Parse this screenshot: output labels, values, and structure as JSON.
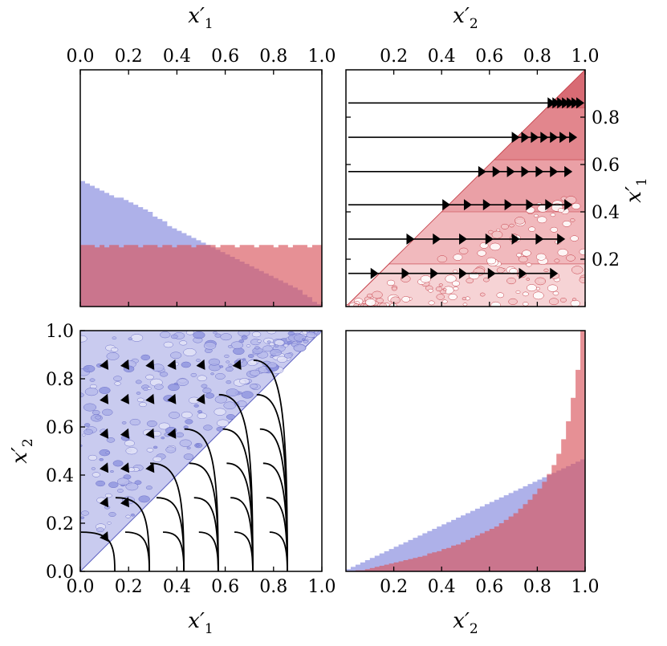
{
  "colors": {
    "blue_fill": "#8c90e0",
    "red_fill": "#d9545c",
    "red_stroke": "#c43c46",
    "blue_stroke": "#5a5ec0",
    "overlap": "#b26a86",
    "arrow": "#000000"
  },
  "axis_text": {
    "x1": {
      "main": "x′",
      "sub": "1"
    },
    "x2": {
      "main": "x′",
      "sub": "2"
    }
  },
  "chart_data": [
    {
      "panel": "top-left",
      "type": "histogram",
      "xlabel": "x′1",
      "xlabel_position": "top",
      "xlim": [
        0,
        1
      ],
      "x_ticks": [
        "0.0",
        "0.2",
        "0.4",
        "0.6",
        "0.8",
        "1.0"
      ],
      "bins": 50,
      "series": [
        {
          "color": "blue",
          "values": [
            0.53,
            0.52,
            0.51,
            0.5,
            0.49,
            0.48,
            0.47,
            0.46,
            0.46,
            0.45,
            0.44,
            0.43,
            0.42,
            0.41,
            0.4,
            0.38,
            0.37,
            0.36,
            0.34,
            0.33,
            0.32,
            0.31,
            0.3,
            0.29,
            0.28,
            0.27,
            0.26,
            0.25,
            0.24,
            0.23,
            0.22,
            0.21,
            0.2,
            0.19,
            0.18,
            0.17,
            0.16,
            0.15,
            0.14,
            0.13,
            0.12,
            0.11,
            0.1,
            0.09,
            0.08,
            0.07,
            0.05,
            0.04,
            0.02,
            0.01
          ]
        },
        {
          "color": "red",
          "values": [
            0.26,
            0.26,
            0.26,
            0.25,
            0.26,
            0.25,
            0.26,
            0.26,
            0.25,
            0.26,
            0.26,
            0.26,
            0.25,
            0.26,
            0.26,
            0.26,
            0.25,
            0.26,
            0.26,
            0.25,
            0.26,
            0.26,
            0.26,
            0.25,
            0.26,
            0.26,
            0.26,
            0.26,
            0.25,
            0.26,
            0.26,
            0.26,
            0.25,
            0.26,
            0.26,
            0.26,
            0.25,
            0.26,
            0.26,
            0.26,
            0.25,
            0.26,
            0.26,
            0.25,
            0.26,
            0.26,
            0.26,
            0.25,
            0.26,
            0.26
          ]
        }
      ]
    },
    {
      "panel": "top-right",
      "type": "contour-with-arrows",
      "xlabel": "x′2",
      "xlabel_position": "top",
      "ylabel": "x′1",
      "ylabel_position": "right",
      "xlim": [
        0,
        1
      ],
      "ylim": [
        0,
        1
      ],
      "x_ticks": [
        "0.2",
        "0.4",
        "0.6",
        "0.8",
        "1.0"
      ],
      "y_ticks": [
        "0.2",
        "0.4",
        "0.6",
        "0.8"
      ],
      "filled_region": "x′1 < x′2",
      "arrow_rows": [
        {
          "y": 0.14,
          "xs": [
            0.12,
            0.25,
            0.37,
            0.49,
            0.61,
            0.74,
            0.87
          ]
        },
        {
          "y": 0.285,
          "xs": [
            0.27,
            0.38,
            0.49,
            0.6,
            0.71,
            0.81,
            0.9
          ]
        },
        {
          "y": 0.43,
          "xs": [
            0.42,
            0.51,
            0.59,
            0.68,
            0.77,
            0.85,
            0.93
          ]
        },
        {
          "y": 0.57,
          "xs": [
            0.57,
            0.63,
            0.69,
            0.75,
            0.81,
            0.87,
            0.93
          ]
        },
        {
          "y": 0.715,
          "xs": [
            0.71,
            0.75,
            0.79,
            0.83,
            0.87,
            0.91,
            0.95
          ]
        },
        {
          "y": 0.86,
          "xs": [
            0.86,
            0.88,
            0.9,
            0.92,
            0.94,
            0.96,
            0.98
          ]
        }
      ],
      "arrow_direction": "right"
    },
    {
      "panel": "bottom-left",
      "type": "contour-with-arrows",
      "xlabel": "x′1",
      "ylabel": "x′2",
      "xlim": [
        0,
        1
      ],
      "ylim": [
        0,
        1
      ],
      "x_ticks": [
        "0.0",
        "0.2",
        "0.4",
        "0.6",
        "0.8",
        "1.0"
      ],
      "y_ticks": [
        "0.0",
        "0.2",
        "0.4",
        "0.6",
        "0.8",
        "1.0"
      ],
      "filled_region": "x′2 > x′1",
      "arrow_columns_x": [
        0.143,
        0.286,
        0.429,
        0.571,
        0.714,
        0.857
      ],
      "arrow_start_y": [
        0.143,
        0.286,
        0.429,
        0.571,
        0.714,
        0.857
      ],
      "arrow_direction": "up-left"
    },
    {
      "panel": "bottom-right",
      "type": "histogram",
      "xlabel": "x′2",
      "xlim": [
        0,
        1
      ],
      "x_ticks": [
        "0.2",
        "0.4",
        "0.6",
        "0.8",
        "1.0"
      ],
      "bins": 50,
      "series": [
        {
          "color": "blue",
          "values": [
            0.02,
            0.04,
            0.06,
            0.08,
            0.1,
            0.12,
            0.14,
            0.16,
            0.18,
            0.2,
            0.22,
            0.24,
            0.26,
            0.28,
            0.3,
            0.32,
            0.34,
            0.36,
            0.38,
            0.4,
            0.42,
            0.44,
            0.46,
            0.48,
            0.5,
            0.52,
            0.54,
            0.56,
            0.58,
            0.6,
            0.62,
            0.64,
            0.66,
            0.68,
            0.7,
            0.72,
            0.74,
            0.76,
            0.78,
            0.8,
            0.82,
            0.84,
            0.86,
            0.88,
            0.9,
            0.92,
            0.94,
            0.96,
            0.98,
            1.0
          ]
        },
        {
          "color": "red",
          "values": [
            0.0,
            0.0,
            0.01,
            0.01,
            0.02,
            0.03,
            0.04,
            0.05,
            0.06,
            0.07,
            0.08,
            0.09,
            0.1,
            0.11,
            0.12,
            0.13,
            0.14,
            0.16,
            0.17,
            0.18,
            0.2,
            0.21,
            0.23,
            0.24,
            0.26,
            0.28,
            0.3,
            0.32,
            0.34,
            0.36,
            0.38,
            0.4,
            0.43,
            0.46,
            0.49,
            0.52,
            0.56,
            0.6,
            0.64,
            0.69,
            0.74,
            0.8,
            0.87,
            0.95,
            1.05,
            1.18,
            1.34,
            1.55,
            1.8,
            2.15
          ]
        }
      ]
    }
  ]
}
